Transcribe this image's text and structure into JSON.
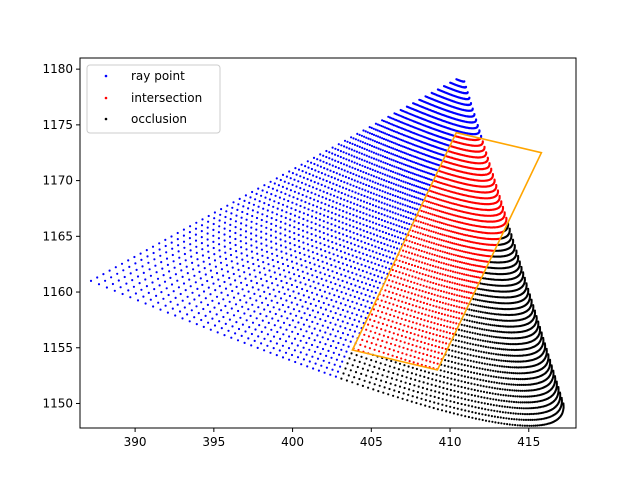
{
  "chart_data": {
    "type": "scatter",
    "title": "",
    "xlabel": "",
    "ylabel": "",
    "xlim": [
      386.5,
      418.0
    ],
    "ylim": [
      1147.8,
      1181.0
    ],
    "xticks": [
      390,
      395,
      400,
      405,
      410,
      415
    ],
    "yticks": [
      1150,
      1155,
      1160,
      1165,
      1170,
      1175,
      1180
    ],
    "grid": false,
    "legend_position": "top-left",
    "fan": {
      "apex": [
        410.8,
        1179.4
      ],
      "left_end": [
        387.2,
        1161.0
      ],
      "right_end": [
        417.2,
        1150.0
      ],
      "arc_bottom": [
        410.0,
        1149.2
      ],
      "ray_count": 120,
      "points_per_ray": 60
    },
    "box_corners": [
      [
        410.4,
        1174.3
      ],
      [
        415.8,
        1172.5
      ],
      [
        409.2,
        1153.0
      ],
      [
        403.8,
        1154.8
      ]
    ],
    "series": [
      {
        "name": "ray point",
        "color": "#0000ff",
        "marker": "dot"
      },
      {
        "name": "intersection",
        "color": "#ff0000",
        "marker": "dot"
      },
      {
        "name": "occlusion",
        "color": "#000000",
        "marker": "dot"
      }
    ],
    "box_color": "#ffa500"
  }
}
